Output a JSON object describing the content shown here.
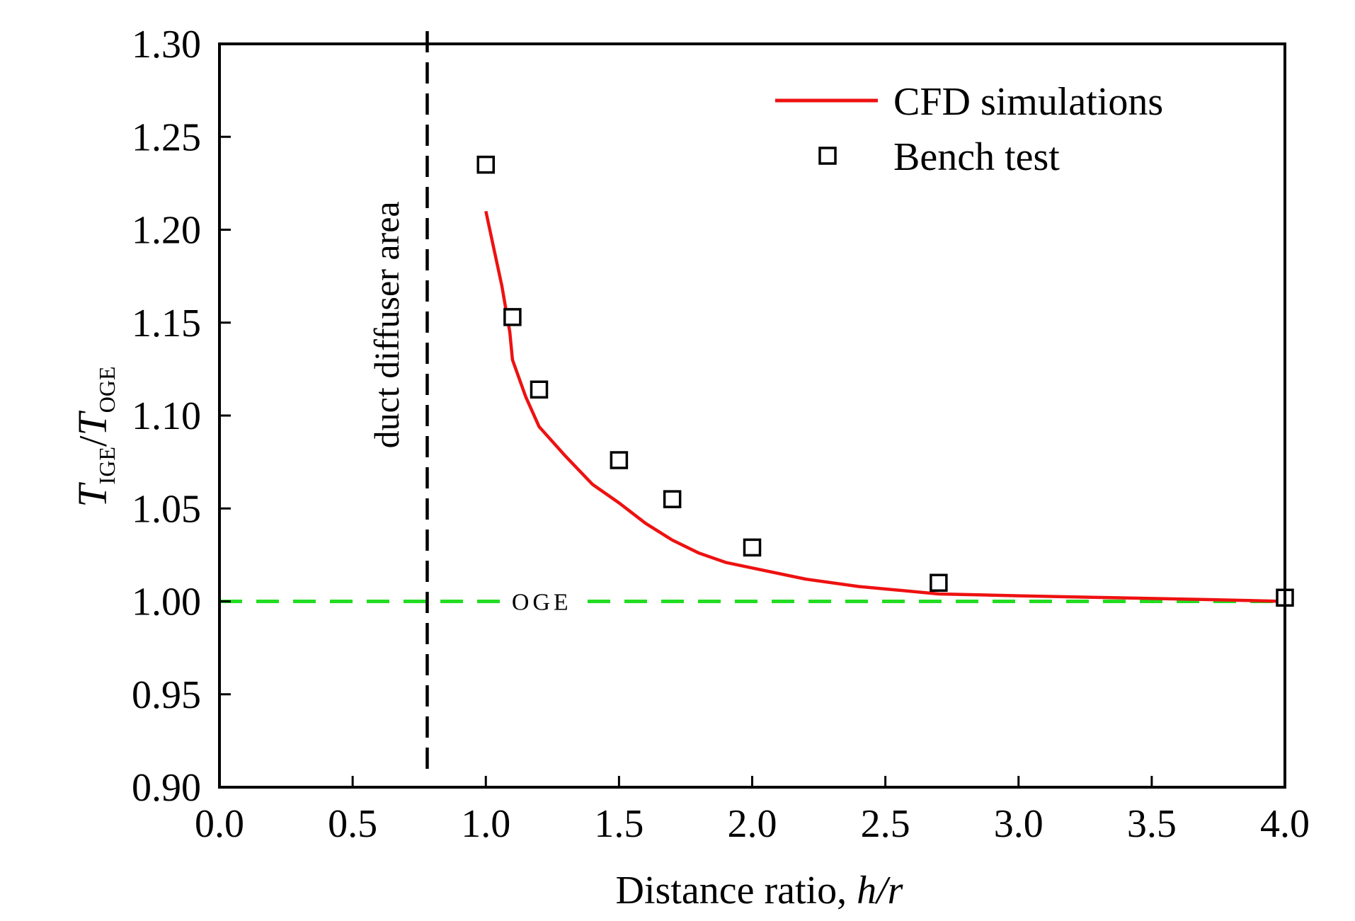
{
  "chart_data": {
    "type": "line",
    "title": "",
    "xlabel": "Distance ratio, h/r",
    "xlabel_parts": {
      "prefix": "Distance ratio, ",
      "italic": "h/r"
    },
    "ylabel_parts": {
      "num": "T",
      "num_sub": "IGE",
      "slash": "/",
      "den": "T",
      "den_sub": "OGE"
    },
    "xlim": [
      0.0,
      4.0
    ],
    "ylim": [
      0.9,
      1.3
    ],
    "xticks": [
      "0.0",
      "0.5",
      "1.0",
      "1.5",
      "2.0",
      "2.5",
      "3.0",
      "3.5",
      "4.0"
    ],
    "yticks": [
      "0.90",
      "0.95",
      "1.00",
      "1.05",
      "1.10",
      "1.15",
      "1.20",
      "1.25",
      "1.30"
    ],
    "xtick_values": [
      0.0,
      0.5,
      1.0,
      1.5,
      2.0,
      2.5,
      3.0,
      3.5,
      4.0
    ],
    "ytick_values": [
      0.9,
      0.95,
      1.0,
      1.05,
      1.1,
      1.15,
      1.2,
      1.25,
      1.3
    ],
    "series": [
      {
        "name": "CFD simulations",
        "style": "line",
        "color": "#ee1111",
        "x": [
          1.0,
          1.03,
          1.06,
          1.09,
          1.1,
          1.15,
          1.2,
          1.3,
          1.4,
          1.5,
          1.6,
          1.7,
          1.8,
          1.9,
          2.0,
          2.2,
          2.4,
          2.7,
          3.0,
          3.35,
          3.7,
          4.0
        ],
        "y": [
          1.21,
          1.19,
          1.17,
          1.145,
          1.13,
          1.11,
          1.094,
          1.078,
          1.063,
          1.053,
          1.042,
          1.033,
          1.026,
          1.021,
          1.018,
          1.012,
          1.008,
          1.004,
          1.003,
          1.002,
          1.001,
          1.0
        ]
      },
      {
        "name": "Bench test",
        "style": "marker",
        "marker": "open-square",
        "color": "#000000",
        "x": [
          1.0,
          1.1,
          1.2,
          1.5,
          1.7,
          2.0,
          2.7,
          4.0
        ],
        "y": [
          1.235,
          1.153,
          1.114,
          1.076,
          1.055,
          1.029,
          1.01,
          1.002
        ]
      }
    ],
    "reference_lines": [
      {
        "name": "OGE",
        "orientation": "horizontal",
        "value": 1.0,
        "style": "dashed",
        "color": "#22dd22",
        "label": "OGE"
      },
      {
        "name": "duct diffuser boundary",
        "orientation": "vertical",
        "value": 0.78,
        "style": "dashed",
        "color": "#000000"
      }
    ],
    "annotations": [
      {
        "text": "duct diffuser area"
      },
      {
        "text": "OGE"
      }
    ],
    "legend": {
      "placement": "top-right",
      "entries": [
        {
          "label": "CFD simulations",
          "kind": "line",
          "color": "#ee1111"
        },
        {
          "label": "Bench test",
          "kind": "open-square",
          "color": "#000000"
        }
      ]
    },
    "grid": false
  }
}
